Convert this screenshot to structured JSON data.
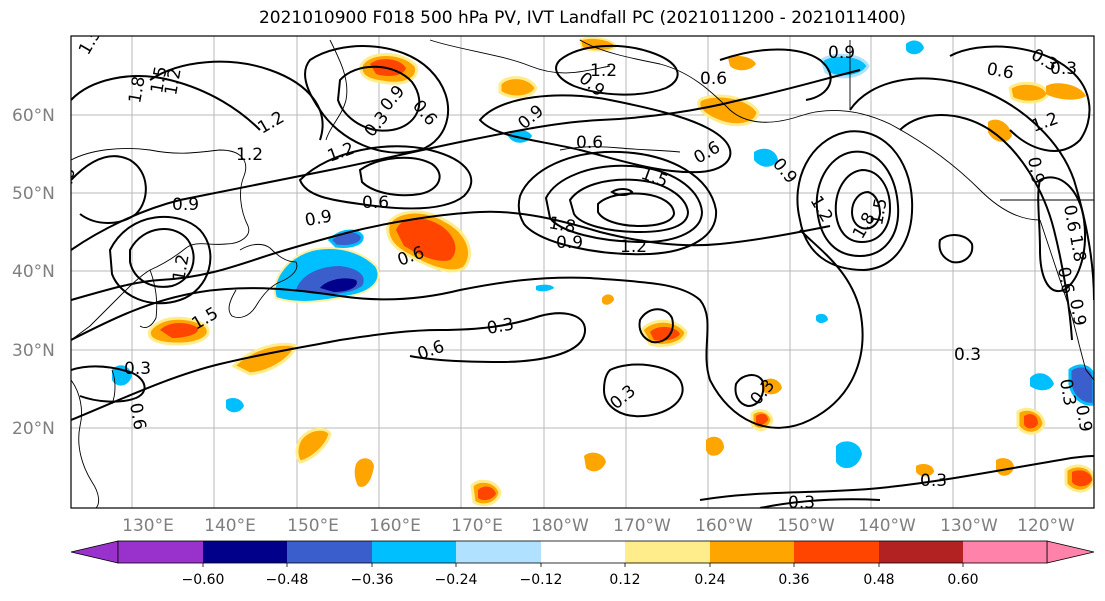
{
  "title": "2021010900 F018 500 hPa PV, IVT Landfall PC (2021011200 - 2021011400)",
  "lat_labels": [
    "60°N",
    "50°N",
    "40°N",
    "30°N",
    "20°N"
  ],
  "lon_labels": [
    "130°E",
    "140°E",
    "150°E",
    "160°E",
    "170°E",
    "180°W",
    "170°W",
    "160°W",
    "150°W",
    "140°W",
    "130°W",
    "120°W"
  ],
  "colorbar": {
    "ticks": [
      "−0.60",
      "−0.48",
      "−0.36",
      "−0.24",
      "−0.12",
      "0.12",
      "0.24",
      "0.36",
      "0.48",
      "0.60"
    ],
    "colors": [
      "#9932cc",
      "#00008b",
      "#3a5fcd",
      "#00bfff",
      "#b0e2ff",
      "#ffffff",
      "#ffec8b",
      "#ffa500",
      "#ff4500",
      "#b22222",
      "#ff82ab"
    ]
  },
  "contour_labels": [
    {
      "text": "1.5"
    },
    {
      "text": "1.2"
    },
    {
      "text": "1.5"
    },
    {
      "text": "1.8"
    },
    {
      "text": "1.2"
    },
    {
      "text": "1.2"
    },
    {
      "text": "0.6"
    },
    {
      "text": "0.9"
    },
    {
      "text": "1.2"
    },
    {
      "text": "0.3"
    },
    {
      "text": "0.6"
    },
    {
      "text": "0.9"
    },
    {
      "text": "0.6"
    },
    {
      "text": "0.6"
    },
    {
      "text": "0.9"
    },
    {
      "text": "1.5"
    },
    {
      "text": "1.8"
    },
    {
      "text": "1.2"
    },
    {
      "text": "0.9"
    },
    {
      "text": "0.9"
    },
    {
      "text": "0.6"
    },
    {
      "text": "0.3"
    },
    {
      "text": "1.2"
    },
    {
      "text": "0.9"
    },
    {
      "text": "0.6"
    },
    {
      "text": "0.9"
    },
    {
      "text": "1.2"
    },
    {
      "text": "1.8"
    },
    {
      "text": "1.5"
    },
    {
      "text": "0.6"
    },
    {
      "text": "0.9"
    },
    {
      "text": "1.2"
    },
    {
      "text": "0.6"
    },
    {
      "text": "1.5"
    },
    {
      "text": "0.3"
    },
    {
      "text": "0.6"
    },
    {
      "text": "0.3"
    },
    {
      "text": "0.3"
    },
    {
      "text": "0.3"
    },
    {
      "text": "0.3"
    },
    {
      "text": "0.3"
    },
    {
      "text": "0.3"
    },
    {
      "text": "0.3"
    },
    {
      "text": "0.6"
    },
    {
      "text": "0.9"
    },
    {
      "text": "0.6"
    },
    {
      "text": "0.9"
    },
    {
      "text": "0.3"
    },
    {
      "text": "1.8"
    },
    {
      "text": "0.6"
    },
    {
      "text": "1.2"
    },
    {
      "text": "0.9"
    }
  ]
}
